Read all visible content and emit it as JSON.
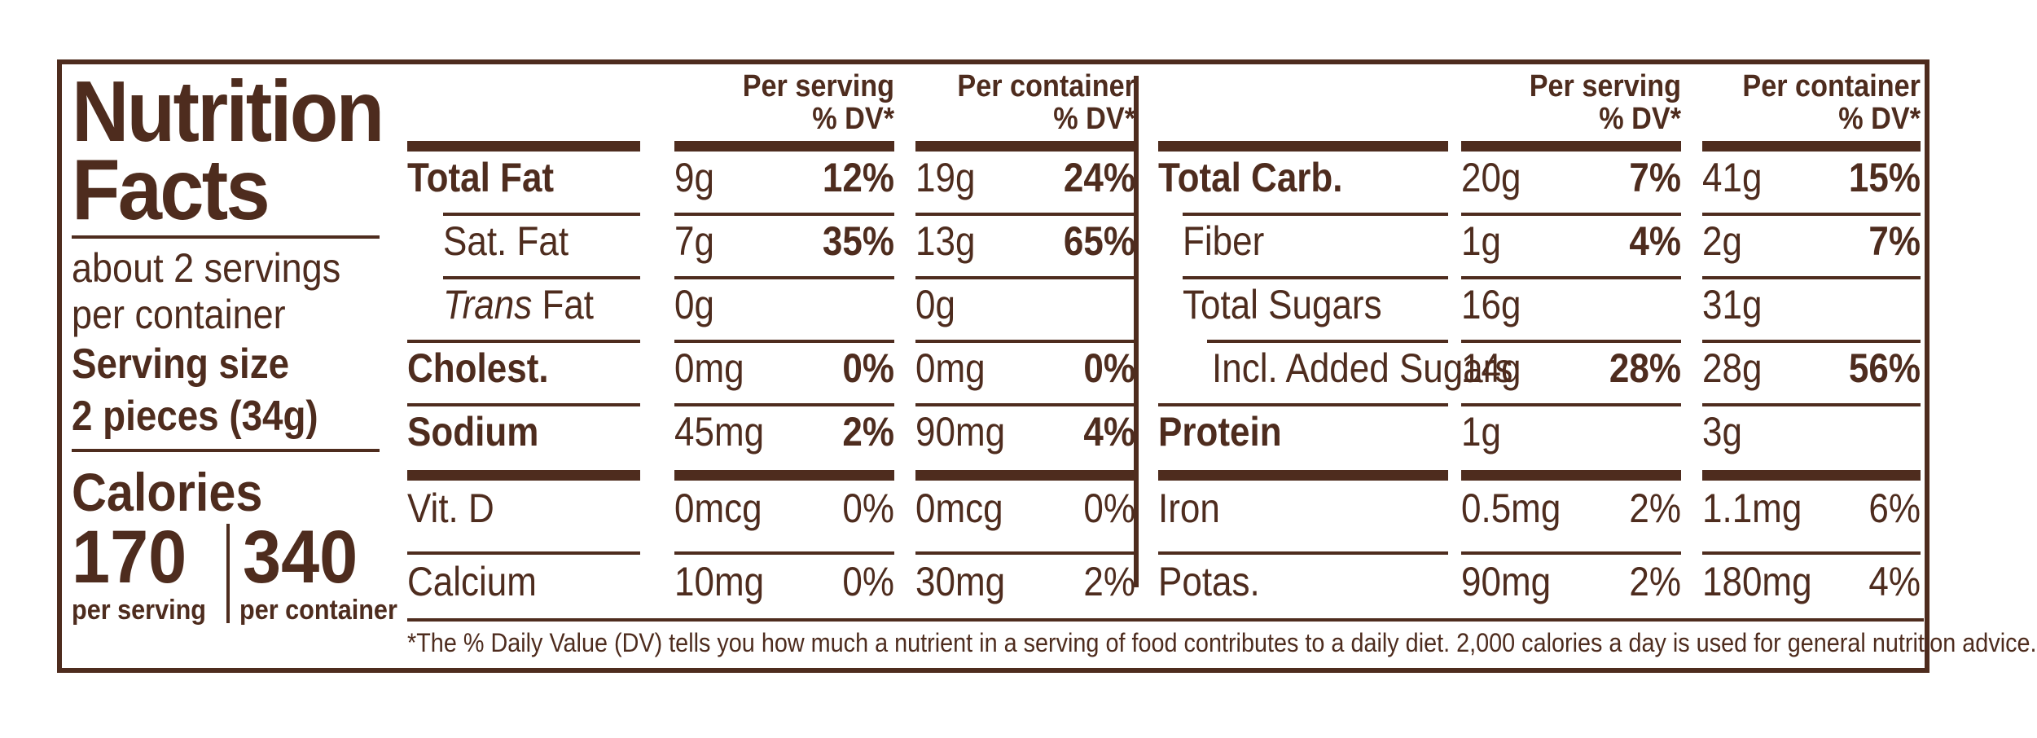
{
  "label": {
    "title_line1": "Nutrition",
    "title_line2": "Facts",
    "servings_line1": "about 2 servings",
    "servings_line2": "per container",
    "serving_size_label": "Serving size",
    "serving_size_value": "2 pieces (34g)",
    "calories_label": "Calories",
    "calories_per_serving": "170",
    "calories_per_serving_label": "per serving",
    "calories_per_container": "340",
    "calories_per_container_label": "per container"
  },
  "headers": {
    "per_serving_l1": "Per serving",
    "per_serving_l2": "% DV*",
    "per_container_l1": "Per container",
    "per_container_l2": "% DV*"
  },
  "left_table": [
    {
      "name": "Total Fat",
      "bold": true,
      "serv_amt": "9g",
      "serv_dv": "12%",
      "cont_amt": "19g",
      "cont_dv": "24%"
    },
    {
      "name": "Sat. Fat",
      "bold": false,
      "indent": 1,
      "serv_amt": "7g",
      "serv_dv": "35%",
      "cont_amt": "13g",
      "cont_dv": "65%"
    },
    {
      "name_italic": "Trans",
      "name_rest": " Fat",
      "bold": false,
      "indent": 1,
      "serv_amt": "0g",
      "serv_dv": "",
      "cont_amt": "0g",
      "cont_dv": ""
    },
    {
      "name": "Cholest.",
      "bold": true,
      "serv_amt": "0mg",
      "serv_dv": "0%",
      "cont_amt": "0mg",
      "cont_dv": "0%"
    },
    {
      "name": "Sodium",
      "bold": true,
      "serv_amt": "45mg",
      "serv_dv": "2%",
      "cont_amt": "90mg",
      "cont_dv": "4%"
    },
    {
      "name": "Vit. D",
      "bold": false,
      "serv_amt": "0mcg",
      "serv_dv": "0%",
      "cont_amt": "0mcg",
      "cont_dv": "0%"
    },
    {
      "name": "Calcium",
      "bold": false,
      "serv_amt": "10mg",
      "serv_dv": "0%",
      "cont_amt": "30mg",
      "cont_dv": "2%"
    }
  ],
  "right_table": [
    {
      "name": "Total Carb.",
      "bold": true,
      "serv_amt": "20g",
      "serv_dv": "7%",
      "cont_amt": "41g",
      "cont_dv": "15%"
    },
    {
      "name": "Fiber",
      "bold": false,
      "indent": 1,
      "serv_amt": "1g",
      "serv_dv": "4%",
      "cont_amt": "2g",
      "cont_dv": "7%"
    },
    {
      "name": "Total Sugars",
      "bold": false,
      "indent": 1,
      "serv_amt": "16g",
      "serv_dv": "",
      "cont_amt": "31g",
      "cont_dv": ""
    },
    {
      "name": "Incl. Added Sugars",
      "bold": false,
      "indent": 2,
      "serv_amt": "14g",
      "serv_dv": "28%",
      "cont_amt": "28g",
      "cont_dv": "56%"
    },
    {
      "name": "Protein",
      "bold": true,
      "serv_amt": "1g",
      "serv_dv": "",
      "cont_amt": "3g",
      "cont_dv": ""
    },
    {
      "name": "Iron",
      "bold": false,
      "serv_amt": "0.5mg",
      "serv_dv": "2%",
      "cont_amt": "1.1mg",
      "cont_dv": "6%"
    },
    {
      "name": "Potas.",
      "bold": false,
      "serv_amt": "90mg",
      "serv_dv": "2%",
      "cont_amt": "180mg",
      "cont_dv": "4%"
    }
  ],
  "footnote": "*The % Daily Value (DV) tells you how much a nutrient in a serving of food contributes to a daily diet. 2,000 calories a day is used for general nutrition advice.",
  "colors": {
    "ink": "#4e2c1e",
    "background": "#ffffff"
  }
}
